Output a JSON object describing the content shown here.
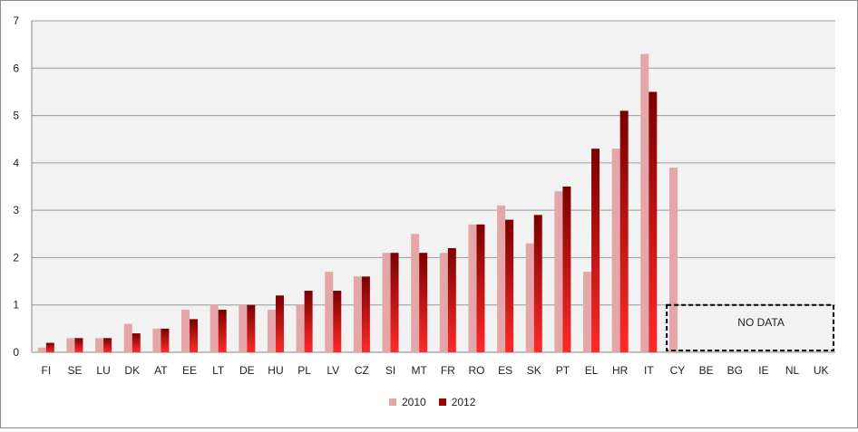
{
  "chart_data": {
    "type": "bar",
    "categories": [
      "FI",
      "SE",
      "LU",
      "DK",
      "AT",
      "EE",
      "LT",
      "DE",
      "HU",
      "PL",
      "LV",
      "CZ",
      "SI",
      "MT",
      "FR",
      "RO",
      "ES",
      "SK",
      "PT",
      "EL",
      "HR",
      "IT",
      "CY",
      "BE",
      "BG",
      "IE",
      "NL",
      "UK"
    ],
    "series": [
      {
        "name": "2010",
        "color": "#e4a6a6",
        "values": [
          0.1,
          0.3,
          0.3,
          0.6,
          0.5,
          0.9,
          1.0,
          1.0,
          0.9,
          1.0,
          1.7,
          1.6,
          2.1,
          2.5,
          2.1,
          2.7,
          3.1,
          2.3,
          3.4,
          1.7,
          4.3,
          6.3,
          3.9,
          null,
          null,
          null,
          null,
          null
        ]
      },
      {
        "name": "2012",
        "color": "#c00000",
        "values": [
          0.2,
          0.3,
          0.3,
          0.4,
          0.5,
          0.7,
          0.9,
          1.0,
          1.2,
          1.3,
          1.3,
          1.6,
          2.1,
          2.1,
          2.2,
          2.7,
          2.8,
          2.9,
          3.5,
          4.3,
          5.1,
          5.5,
          null,
          null,
          null,
          null,
          null,
          null
        ]
      }
    ],
    "ylim": [
      0,
      7
    ],
    "yticks": [
      0,
      1,
      2,
      3,
      4,
      5,
      6,
      7
    ],
    "grid": true,
    "legend": "bottom-center",
    "annotation": {
      "text": "NO DATA",
      "x_start": "CY",
      "x_end": "UK",
      "y_range": [
        0,
        1
      ]
    }
  }
}
